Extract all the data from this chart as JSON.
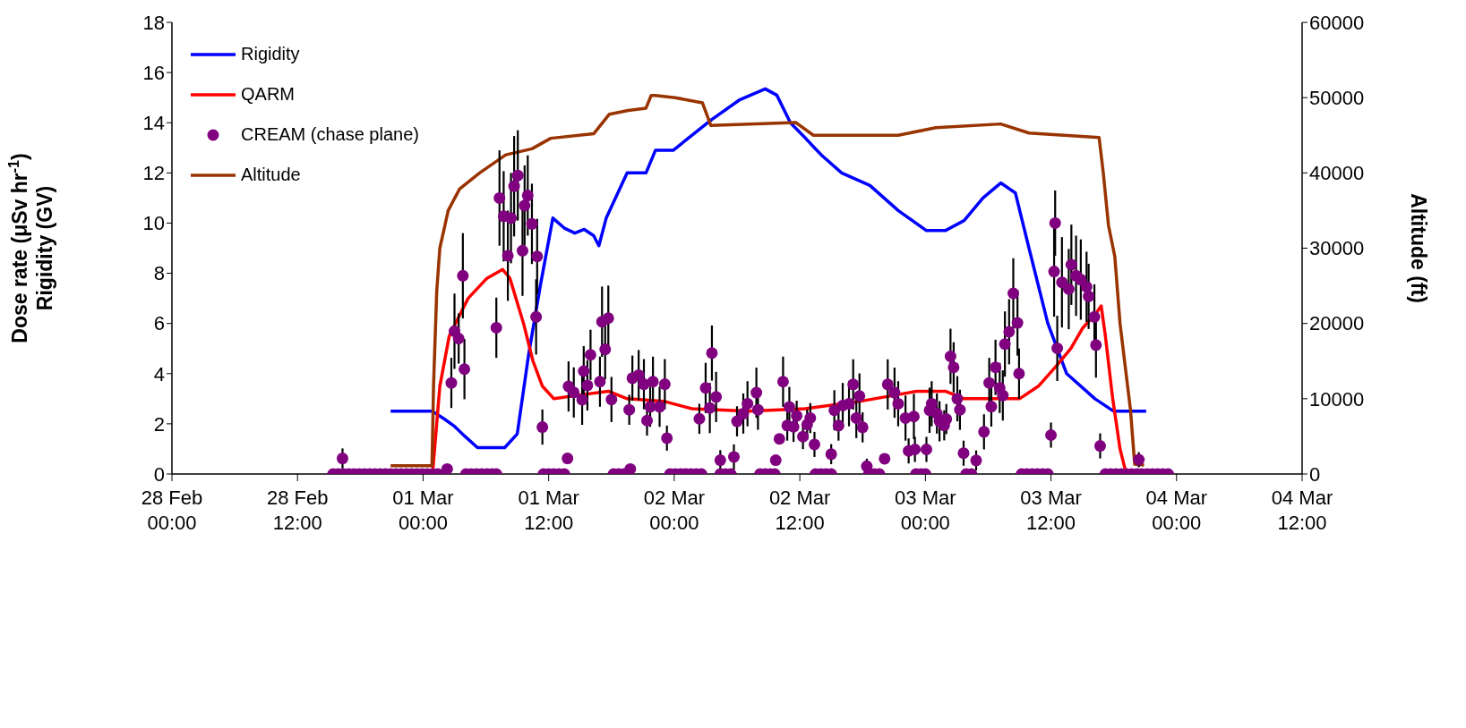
{
  "chart_data": {
    "type": "line",
    "ylabel": "Dose rate (μSv hr$^{-1}$)\nRigidity (GV)",
    "y2label": "Altitude (ft)",
    "xlim": [
      "--02-28T00:00",
      "--03-04T12:00"
    ],
    "xticks": [
      {
        "value": "--02-28T00:00",
        "label": "28 Feb\n00:00"
      },
      {
        "value": "--02-28T12:00",
        "label": "28 Feb\n12:00"
      },
      {
        "value": "--03-01T00:00",
        "label": "01 Mar\n00:00"
      },
      {
        "value": "--03-01T12:00",
        "label": "01 Mar\n12:00"
      },
      {
        "value": "--03-02T00:00",
        "label": "02 Mar\n00:00"
      },
      {
        "value": "--03-02T12:00",
        "label": "02 Mar\n12:00"
      },
      {
        "value": "--03-03T00:00",
        "label": "03 Mar\n00:00"
      },
      {
        "value": "--03-03T12:00",
        "label": "03 Mar\n12:00"
      },
      {
        "value": "--03-04T00:00",
        "label": "04 Mar\n00:00"
      },
      {
        "value": "--03-04T12:00",
        "label": "04 Mar\n12:00"
      }
    ],
    "ylim": [
      0,
      18
    ],
    "yticks": [
      0,
      2,
      4,
      6,
      8,
      10,
      12,
      14,
      16,
      18
    ],
    "y2lim": [
      0,
      60000
    ],
    "y2ticks": [
      0,
      10000,
      20000,
      30000,
      40000,
      50000,
      60000
    ],
    "legend": "top left",
    "line_style": "solid",
    "series": [
      {
        "name": "Rigidity",
        "color": "#0000ff",
        "x": [
          "--02-28T20:54",
          "--03-01T00:54",
          "--03-01T02:00",
          "--03-01T03:00",
          "--03-01T04:00",
          "--03-01T05:12",
          "--03-01T07:48",
          "--03-01T09:00",
          "--03-01T10:06",
          "--03-01T11:12",
          "--03-01T12:24",
          "--03-01T13:30",
          "--03-01T14:30",
          "--03-01T15:24",
          "--03-01T16:18",
          "--03-01T16:48",
          "--03-01T17:30",
          "--03-01T19:30",
          "--03-01T21:18",
          "--03-01T22:12",
          "--03-01T23:54",
          "--03-02T02:00",
          "--03-02T03:30",
          "--03-02T06:12",
          "--03-02T08:42",
          "--03-02T09:48",
          "--03-02T11:06",
          "--03-02T12:30",
          "--03-02T13:24",
          "--03-02T14:06",
          "--03-02T16:00",
          "--03-02T18:42",
          "--03-02T21:24",
          "--03-03T00:06",
          "--03-03T01:54",
          "--03-03T03:42",
          "--03-03T05:30",
          "--03-03T07:12",
          "--03-03T08:36",
          "--03-03T09:54",
          "--03-03T11:42",
          "--03-03T13:30",
          "--03-03T16:12",
          "--03-03T18:00",
          "--03-03T21:06"
        ],
        "values": [
          2.5,
          2.5,
          2.2,
          1.9,
          1.5,
          1.05,
          1.05,
          1.6,
          4.8,
          7.5,
          10.2,
          9.8,
          9.6,
          9.75,
          9.5,
          9.1,
          10.2,
          12,
          12,
          12.9,
          12.9,
          13.6,
          14.1,
          14.9,
          15.35,
          15.1,
          14,
          13.4,
          13,
          12.7,
          12,
          11.5,
          10.5,
          9.7,
          9.7,
          10.1,
          11,
          11.6,
          11.2,
          9,
          6,
          4,
          3,
          2.5,
          2.5
        ]
      },
      {
        "name": "QARM",
        "color": "#ff0000",
        "x": [
          "--03-01T00:54",
          "--03-01T01:36",
          "--03-01T02:30",
          "--03-01T04:18",
          "--03-01T06:06",
          "--03-01T07:36",
          "--03-01T08:18",
          "--03-01T09:36",
          "--03-01T10:30",
          "--03-01T11:24",
          "--03-01T12:30",
          "--03-01T15:00",
          "--03-01T17:42",
          "--03-01T19:30",
          "--03-01T23:00",
          "--03-02T01:42",
          "--03-02T07:06",
          "--03-02T12:30",
          "--03-02T17:48",
          "--03-02T23:12",
          "--03-03T01:54",
          "--03-03T03:42",
          "--03-03T09:00",
          "--03-03T10:48",
          "--03-03T12:30",
          "--03-03T13:54",
          "--03-03T15:00",
          "--03-03T16:18",
          "--03-03T16:48",
          "--03-03T17:12",
          "--03-03T17:54",
          "--03-03T18:36",
          "--03-03T19:12"
        ],
        "values": [
          0,
          3.5,
          5.5,
          7,
          7.8,
          8.15,
          7.8,
          6,
          4.5,
          3.5,
          3.0,
          3.15,
          3.3,
          3.0,
          2.9,
          2.6,
          2.5,
          2.6,
          2.9,
          3.3,
          3.3,
          3.0,
          3.0,
          3.5,
          4.3,
          5.0,
          5.8,
          6.4,
          6.7,
          5.5,
          3.0,
          1.0,
          0
        ]
      },
      {
        "name": "CREAM (chase plane)",
        "type": "scatter",
        "marker": "circle",
        "color": "#800080",
        "x": [
          "--02-28T16:18",
          "--03-01T02:18",
          "--03-01T02:42",
          "--03-01T03:00",
          "--03-01T03:24",
          "--03-01T03:48",
          "--03-01T03:57",
          "--03-01T07:00",
          "--03-01T07:18",
          "--03-01T07:42",
          "--03-01T08:06",
          "--03-01T08:24",
          "--03-01T08:42",
          "--03-01T09:03",
          "--03-01T09:30",
          "--03-01T09:42",
          "--03-01T10:00",
          "--03-01T10:24",
          "--03-01T10:48",
          "--03-01T10:54",
          "--03-01T11:24",
          "--03-01T13:48",
          "--03-01T13:54",
          "--03-01T14:24",
          "--03-01T15:12",
          "--03-01T15:21",
          "--03-01T15:42",
          "--03-01T16:00",
          "--03-01T16:54",
          "--03-01T17:06",
          "--03-01T17:24",
          "--03-01T17:42",
          "--03-01T18:00",
          "--03-01T19:42",
          "--03-01T19:48",
          "--03-01T20:00",
          "--03-01T20:36",
          "--03-01T21:06",
          "--03-01T21:24",
          "--03-01T21:42",
          "--03-01T21:58",
          "--03-01T22:36",
          "--03-01T23:06",
          "--03-01T23:18",
          "--03-02T02:24",
          "--03-02T03:00",
          "--03-02T03:24",
          "--03-02T03:36",
          "--03-02T04:00",
          "--03-02T04:24",
          "--03-02T05:42",
          "--03-02T06:00",
          "--03-02T06:36",
          "--03-02T07:00",
          "--03-02T07:51",
          "--03-02T08:00",
          "--03-02T09:42",
          "--03-02T10:03",
          "--03-02T10:24",
          "--03-02T10:48",
          "--03-02T11:00",
          "--03-02T11:24",
          "--03-02T11:42",
          "--03-02T12:18",
          "--03-02T12:42",
          "--03-02T13:00",
          "--03-02T13:24",
          "--03-02T15:00",
          "--03-02T15:18",
          "--03-02T15:42",
          "--03-02T16:06",
          "--03-02T16:42",
          "--03-02T17:06",
          "--03-02T17:24",
          "--03-02T17:42",
          "--03-02T18:00",
          "--03-02T18:24",
          "--03-02T20:06",
          "--03-02T20:24",
          "--03-02T21:03",
          "--03-02T21:24",
          "--03-02T22:06",
          "--03-02T22:24",
          "--03-02T22:54",
          "--03-02T23:00",
          "--03-03T00:06",
          "--03-03T00:24",
          "--03-03T00:36",
          "--03-03T01:06",
          "--03-03T01:21",
          "--03-03T01:48",
          "--03-03T02:00",
          "--03-03T02:24",
          "--03-03T02:42",
          "--03-03T03:03",
          "--03-03T03:18",
          "--03-03T03:39",
          "--03-03T04:51",
          "--03-03T05:36",
          "--03-03T06:06",
          "--03-03T06:18",
          "--03-03T06:42",
          "--03-03T07:06",
          "--03-03T07:24",
          "--03-03T07:36",
          "--03-03T08:00",
          "--03-03T08:24",
          "--03-03T08:48",
          "--03-03T08:57",
          "--03-03T12:00",
          "--03-03T12:18",
          "--03-03T12:24",
          "--03-03T12:36",
          "--03-03T13:03",
          "--03-03T13:42",
          "--03-03T13:57",
          "--03-03T14:24",
          "--03-03T14:51",
          "--03-03T15:24",
          "--03-03T15:36",
          "--03-03T16:09",
          "--03-03T16:18",
          "--03-03T16:42",
          "--03-03T20:24",
          "--02-28T15:24",
          "--02-28T15:54",
          "--02-28T16:24",
          "--02-28T16:54",
          "--02-28T17:24",
          "--02-28T17:54",
          "--02-28T18:24",
          "--02-28T18:54",
          "--02-28T19:24",
          "--02-28T19:54",
          "--02-28T20:24",
          "--02-28T20:54",
          "--02-28T21:24",
          "--02-28T21:54",
          "--02-28T22:24",
          "--02-28T22:54",
          "--02-28T23:24",
          "--02-28T23:54",
          "--03-01T00:24",
          "--03-01T00:54",
          "--03-01T01:24",
          "--03-01T04:06",
          "--03-01T04:36",
          "--03-01T05:06",
          "--03-01T05:36",
          "--03-01T06:06",
          "--03-01T06:36",
          "--03-01T07:00",
          "--03-01T11:30",
          "--03-01T12:00",
          "--03-01T12:30",
          "--03-01T13:00",
          "--03-01T13:30",
          "--03-01T18:12",
          "--03-01T18:42",
          "--03-01T19:12",
          "--03-01T23:36",
          "--03-02T00:06",
          "--03-02T00:36",
          "--03-02T01:06",
          "--03-02T01:36",
          "--03-02T02:06",
          "--03-02T02:36",
          "--03-02T04:24",
          "--03-02T04:54",
          "--03-02T05:24",
          "--03-02T08:12",
          "--03-02T08:42",
          "--03-02T09:12",
          "--03-02T09:36",
          "--03-02T13:30",
          "--03-02T14:00",
          "--03-02T14:30",
          "--03-02T15:00",
          "--03-02T18:36",
          "--03-02T19:06",
          "--03-02T19:36",
          "--03-02T23:06",
          "--03-02T23:36",
          "--03-03T00:00",
          "--03-03T03:54",
          "--03-03T04:24",
          "--03-03T09:12",
          "--03-03T09:42",
          "--03-03T10:12",
          "--03-03T10:42",
          "--03-03T11:12",
          "--03-03T11:42",
          "--03-03T17:12",
          "--03-03T17:42",
          "--03-03T18:12",
          "--03-03T18:42",
          "--03-03T19:12",
          "--03-03T19:42",
          "--03-03T20:12",
          "--03-03T20:42",
          "--03-03T21:12",
          "--03-03T21:42",
          "--03-03T22:12",
          "--03-03T22:42",
          "--03-03T23:12"
        ],
        "values": [
          0.62,
          0.2,
          3.63,
          5.69,
          5.4,
          7.9,
          4.18,
          5.83,
          11.0,
          10.27,
          8.7,
          10.2,
          11.47,
          11.9,
          8.9,
          10.7,
          11.1,
          9.97,
          6.26,
          8.67,
          1.87,
          0.62,
          3.49,
          3.25,
          2.96,
          4.1,
          3.53,
          4.75,
          3.68,
          6.07,
          4.97,
          6.21,
          2.97,
          2.56,
          0.2,
          3.82,
          3.94,
          3.58,
          2.13,
          2.68,
          3.68,
          2.68,
          3.58,
          1.43,
          2.2,
          3.43,
          2.63,
          4.82,
          3.07,
          0.55,
          0.68,
          2.1,
          2.41,
          2.8,
          3.24,
          2.56,
          0.55,
          1.4,
          3.68,
          1.93,
          2.67,
          1.88,
          2.32,
          1.49,
          1.97,
          2.23,
          1.18,
          0.79,
          2.54,
          1.93,
          2.73,
          2.8,
          3.57,
          2.23,
          3.11,
          1.86,
          0.31,
          0.61,
          3.57,
          3.24,
          2.8,
          2.23,
          0.92,
          2.29,
          0.98,
          0.98,
          2.54,
          2.8,
          2.41,
          2.1,
          1.94,
          2.19,
          4.69,
          4.25,
          3.0,
          2.56,
          0.83,
          0.54,
          1.68,
          3.63,
          2.69,
          4.25,
          3.43,
          3.13,
          5.18,
          5.67,
          7.2,
          6.02,
          4.0,
          1.55,
          8.07,
          10.0,
          5.01,
          7.64,
          7.37,
          8.34,
          7.9,
          7.75,
          7.46,
          7.08,
          6.26,
          5.14,
          1.12,
          0.57,
          0,
          0,
          0,
          0,
          0,
          0,
          0,
          0,
          0,
          0,
          0,
          0,
          0,
          0,
          0,
          0,
          0,
          0,
          0,
          0,
          0,
          0,
          0,
          0,
          0,
          0,
          0,
          0,
          0,
          0,
          0,
          0,
          0,
          0,
          0,
          0,
          0,
          0,
          0,
          0,
          0,
          0,
          0,
          0,
          0,
          0,
          0,
          0,
          0,
          0,
          0,
          0,
          0,
          0,
          0,
          0,
          0,
          0,
          0,
          0,
          0,
          0,
          0,
          0,
          0,
          0,
          0,
          0,
          0,
          0,
          0,
          0,
          0,
          0,
          0,
          0,
          0,
          0,
          0,
          0,
          0
        ],
        "errors": [
          0.4,
          null,
          1,
          1.5,
          1,
          1.7,
          1.2,
          1.2,
          1.9,
          1.8,
          1.8,
          1.8,
          2,
          1.8,
          1.8,
          1.6,
          1.6,
          1.6,
          1.5,
          1.5,
          0.7,
          null,
          1,
          1,
          1,
          1,
          1,
          1,
          1,
          1.4,
          1.2,
          1.3,
          0.9,
          0.6,
          null,
          0.9,
          1,
          1,
          0.6,
          0.8,
          1,
          0.8,
          1,
          0.5,
          0.6,
          1,
          1,
          1.1,
          1,
          0.4,
          0.5,
          0.6,
          0.8,
          0.9,
          1,
          0.8,
          null,
          null,
          1,
          0.6,
          0.8,
          0.6,
          0.6,
          0.5,
          0.6,
          0.6,
          0.5,
          0.4,
          0.8,
          0.6,
          0.9,
          0.9,
          1,
          0.8,
          0.9,
          0.6,
          0.3,
          null,
          1,
          1,
          0.9,
          0.9,
          0.5,
          0.9,
          0.5,
          0.5,
          0.9,
          0.9,
          0.8,
          0.8,
          0.6,
          0.6,
          1.1,
          1,
          0.9,
          0.8,
          0.5,
          0.4,
          0.7,
          1,
          0.8,
          1.1,
          1,
          1,
          1.3,
          1.3,
          1.4,
          1.3,
          1,
          0.5,
          1.8,
          1.3,
          1.3,
          1.8,
          1.6,
          1.6,
          1.6,
          1.6,
          1.4,
          1.3,
          1.3,
          1.3,
          0.5,
          0.3,
          null,
          null,
          null,
          null,
          null,
          null,
          null,
          null,
          null,
          null,
          null,
          null,
          null,
          null,
          null,
          null,
          null,
          null,
          null,
          null,
          null,
          null,
          null,
          null,
          null,
          null,
          null,
          null,
          null,
          null,
          null,
          null,
          null,
          null,
          null,
          null,
          null,
          null,
          null,
          null,
          null,
          null,
          null,
          null,
          null,
          null,
          null,
          null,
          null,
          null,
          null,
          null,
          null,
          null,
          null,
          null,
          null,
          null,
          null,
          null,
          null,
          null,
          null,
          null,
          null,
          null,
          null,
          null,
          null,
          null,
          null,
          null,
          null,
          null,
          null,
          null,
          null,
          null,
          null,
          null,
          null
        ]
      },
      {
        "name": "Altitude",
        "axis": "y2",
        "color": "#993300",
        "x": [
          "--02-28T20:54",
          "--03-01T00:51",
          "--03-01T01:00",
          "--03-01T01:18",
          "--03-01T01:36",
          "--03-01T02:24",
          "--03-01T03:30",
          "--03-01T05:24",
          "--03-01T07:54",
          "--03-01T10:24",
          "--03-01T12:12",
          "--03-01T16:18",
          "--03-01T17:48",
          "--03-01T19:36",
          "--03-01T21:18",
          "--03-01T21:48",
          "--03-01T22:12",
          "--03-02T00:06",
          "--03-02T02:42",
          "--03-02T03:30",
          "--03-02T11:36",
          "--03-02T13:18",
          "--03-02T21:24",
          "--03-03T01:00",
          "--03-03T07:12",
          "--03-03T09:54",
          "--03-03T16:36",
          "--03-03T17:00",
          "--03-03T17:30",
          "--03-03T18:06",
          "--03-03T18:36",
          "--03-03T19:36",
          "--03-03T20:00",
          "--03-03T20:54"
        ],
        "values": [
          1100,
          1100,
          11800,
          24200,
          30000,
          35000,
          37900,
          40000,
          42400,
          43200,
          44600,
          45200,
          47800,
          48300,
          48600,
          50300,
          50300,
          50000,
          49300,
          46300,
          46700,
          45000,
          45000,
          46000,
          46500,
          45300,
          44700,
          40000,
          33000,
          28900,
          20000,
          8500,
          1300,
          1200
        ]
      }
    ]
  }
}
